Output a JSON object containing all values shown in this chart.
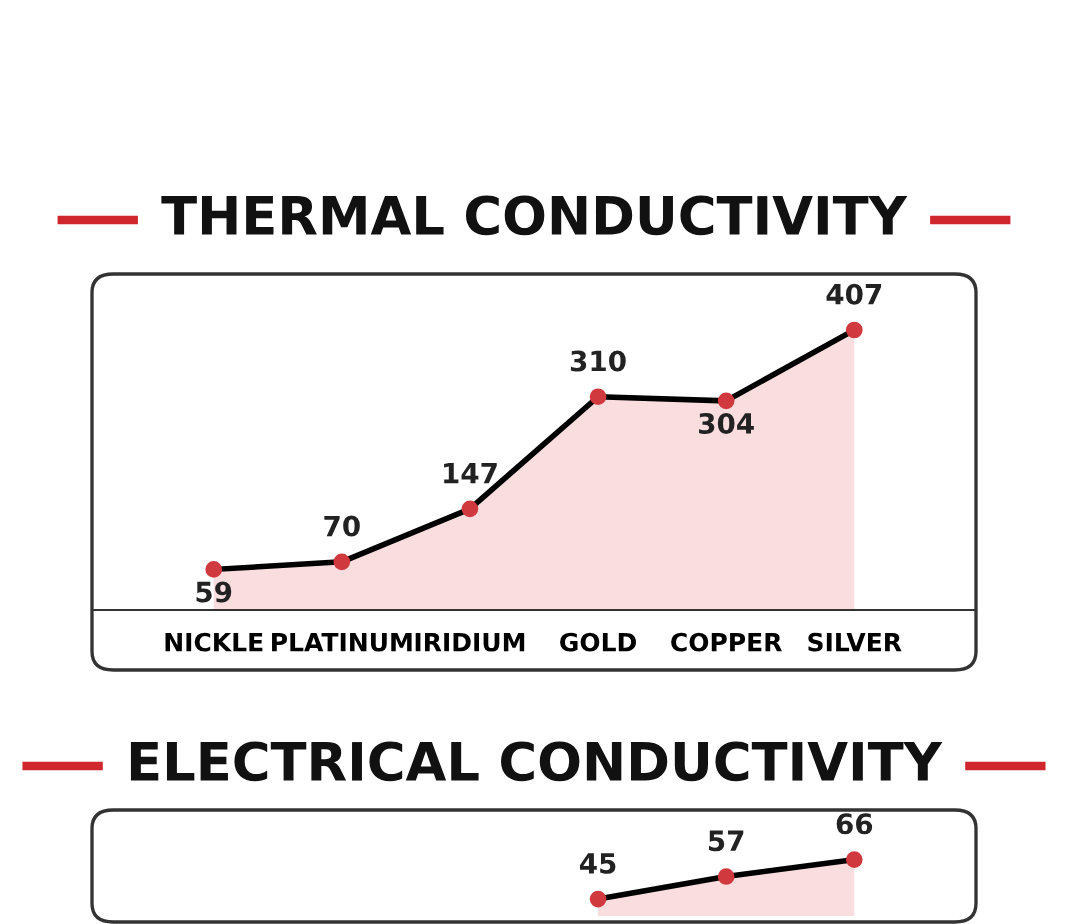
{
  "chart_data": [
    {
      "type": "area",
      "title": "THERMAL CONDUCTIVITY",
      "categories": [
        "NICKLE",
        "PLATINUM",
        "IRIDIUM",
        "GOLD",
        "COPPER",
        "SILVER"
      ],
      "values": [
        59,
        70,
        147,
        310,
        304,
        407
      ],
      "color": "#000000",
      "marker": "circle",
      "data_labels": true,
      "grid": false,
      "legend": false
    },
    {
      "type": "area",
      "title": "ELECTRICAL CONDUCTIVITY",
      "categories": [
        null,
        null,
        null,
        null,
        null,
        null
      ],
      "values": [
        null,
        null,
        null,
        45,
        57,
        66
      ],
      "color": "#000000",
      "marker": "circle",
      "data_labels": true,
      "grid": false,
      "legend": false
    }
  ]
}
